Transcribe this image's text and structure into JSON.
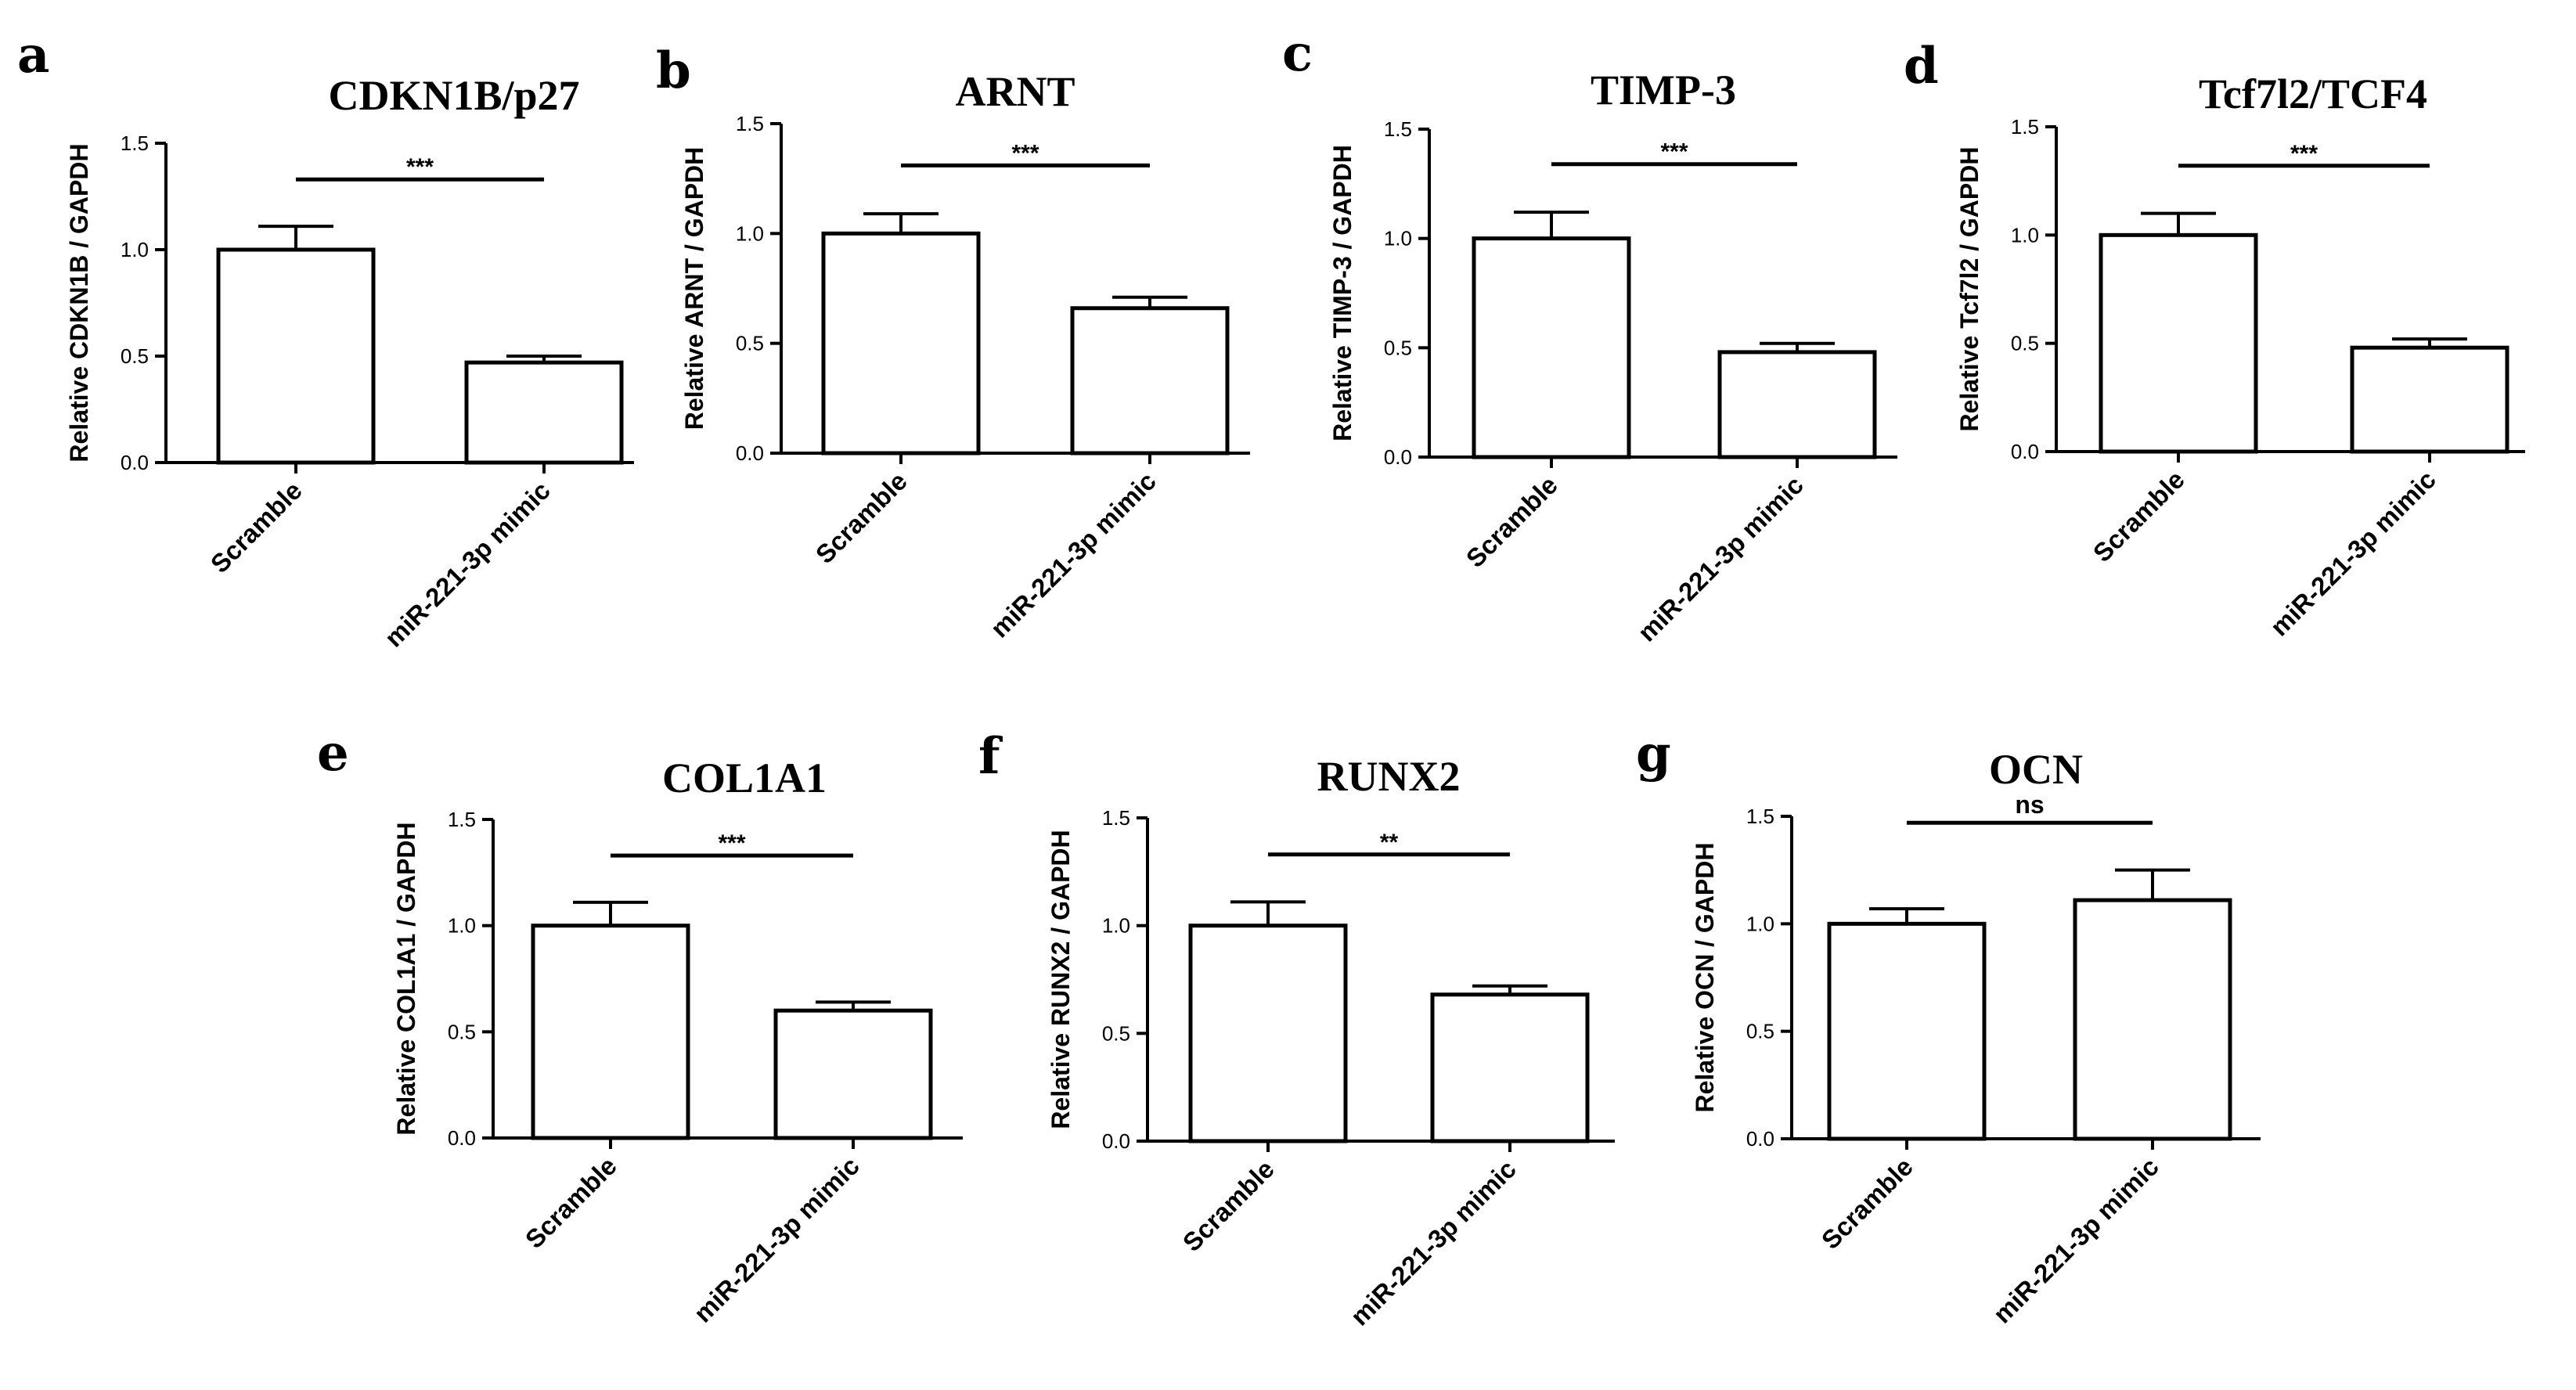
{
  "chart_data": [
    {
      "type": "bar",
      "panel": "a",
      "title": "CDKN1B/p27",
      "ylabel": "Relative CDKN1B / GAPDH",
      "categories": [
        "Scramble",
        "miR-221-3p mimic"
      ],
      "values": [
        1.0,
        0.47
      ],
      "errors": [
        0.11,
        0.03
      ],
      "ylim": [
        0,
        1.5
      ],
      "yticks": [
        "0.0",
        "0.5",
        "1.0",
        "1.5"
      ],
      "significance": "***"
    },
    {
      "type": "bar",
      "panel": "b",
      "title": "ARNT",
      "ylabel": "Relative ARNT / GAPDH",
      "categories": [
        "Scramble",
        "miR-221-3p mimic"
      ],
      "values": [
        1.0,
        0.66
      ],
      "errors": [
        0.09,
        0.05
      ],
      "ylim": [
        0,
        1.5
      ],
      "yticks": [
        "0.0",
        "0.5",
        "1.0",
        "1.5"
      ],
      "significance": "***"
    },
    {
      "type": "bar",
      "panel": "c",
      "title": "TIMP-3",
      "ylabel": "Relative TIMP-3 / GAPDH",
      "categories": [
        "Scramble",
        "miR-221-3p mimic"
      ],
      "values": [
        1.0,
        0.48
      ],
      "errors": [
        0.12,
        0.04
      ],
      "ylim": [
        0,
        1.5
      ],
      "yticks": [
        "0.0",
        "0.5",
        "1.0",
        "1.5"
      ],
      "significance": "***"
    },
    {
      "type": "bar",
      "panel": "d",
      "title": "Tcf7l2/TCF4",
      "ylabel": "Relative Tcf7l2 / GAPDH",
      "categories": [
        "Scramble",
        "miR-221-3p mimic"
      ],
      "values": [
        1.0,
        0.48
      ],
      "errors": [
        0.1,
        0.04
      ],
      "ylim": [
        0,
        1.5
      ],
      "yticks": [
        "0.0",
        "0.5",
        "1.0",
        "1.5"
      ],
      "significance": "***"
    },
    {
      "type": "bar",
      "panel": "e",
      "title": "COL1A1",
      "ylabel": "Relative COL1A1 / GAPDH",
      "categories": [
        "Scramble",
        "miR-221-3p mimic"
      ],
      "values": [
        1.0,
        0.6
      ],
      "errors": [
        0.11,
        0.04
      ],
      "ylim": [
        0,
        1.5
      ],
      "yticks": [
        "0.0",
        "0.5",
        "1.0",
        "1.5"
      ],
      "significance": "***"
    },
    {
      "type": "bar",
      "panel": "f",
      "title": "RUNX2",
      "ylabel": "Relative RUNX2 / GAPDH",
      "categories": [
        "Scramble",
        "miR-221-3p mimic"
      ],
      "values": [
        1.0,
        0.68
      ],
      "errors": [
        0.11,
        0.04
      ],
      "ylim": [
        0,
        1.5
      ],
      "yticks": [
        "0.0",
        "0.5",
        "1.0",
        "1.5"
      ],
      "significance": "**"
    },
    {
      "type": "bar",
      "panel": "g",
      "title": "OCN",
      "ylabel": "Relative OCN / GAPDH",
      "categories": [
        "Scramble",
        "miR-221-3p mimic"
      ],
      "values": [
        1.0,
        1.11
      ],
      "errors": [
        0.07,
        0.14
      ],
      "ylim": [
        0,
        1.5
      ],
      "yticks": [
        "0.0",
        "0.5",
        "1.0",
        "1.5"
      ],
      "significance": "ns"
    }
  ]
}
